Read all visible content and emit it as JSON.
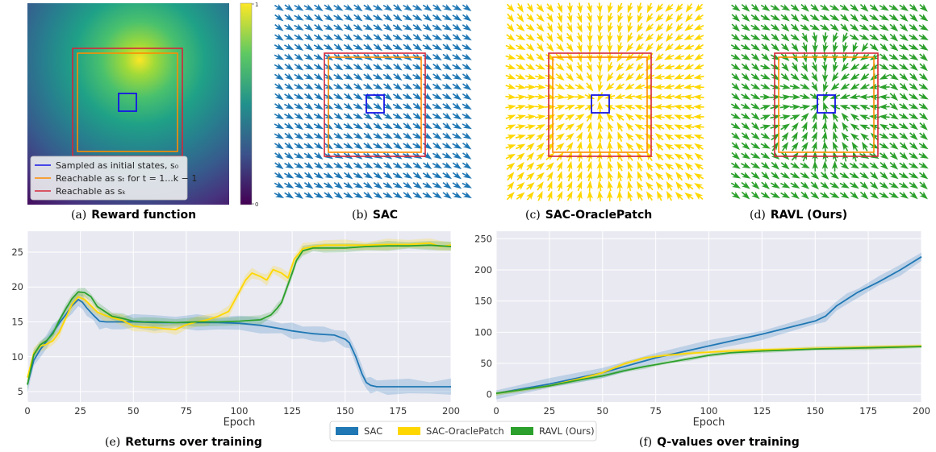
{
  "colors": {
    "sac": "#1f77b4",
    "oracle": "#ffd700",
    "ravl": "#2ca02c",
    "initial": "#1515e6",
    "reach_t": "#ff8c00",
    "reach_k": "#d62739",
    "panel_bg": "#e9e9f2"
  },
  "panels": {
    "a": {
      "label": "(a)",
      "title": "Reward function",
      "legend": [
        "Sampled as initial states, s₀",
        "Reachable as sₜ for t = 1...k − 1",
        "Reachable as sₖ"
      ],
      "colorbar_ticks": [
        "1",
        "0"
      ]
    },
    "b": {
      "label": "(b)",
      "title": "SAC"
    },
    "c": {
      "label": "(c)",
      "title": "SAC-OraclePatch"
    },
    "d": {
      "label": "(d)",
      "title": "RAVL (Ours)"
    }
  },
  "icons": {
    "arrow": "arrow-icon"
  },
  "chart_data": [
    {
      "type": "line",
      "panel": "(e)",
      "title": "Returns over training",
      "xlabel": "Epoch",
      "ylabel": "",
      "xlim": [
        0,
        200
      ],
      "ylim": [
        3.5,
        28
      ],
      "xticks": [
        0,
        25,
        50,
        75,
        100,
        125,
        150,
        175,
        200
      ],
      "yticks": [
        5,
        10,
        15,
        20,
        25
      ],
      "grid": true,
      "series": [
        {
          "name": "SAC",
          "color": "#1f77b4",
          "band": 1.0,
          "x": [
            0,
            3,
            6,
            9,
            12,
            15,
            18,
            21,
            24,
            26,
            28,
            31,
            34,
            37,
            40,
            45,
            50,
            60,
            70,
            80,
            90,
            100,
            110,
            120,
            125,
            130,
            135,
            140,
            145,
            150,
            152,
            155,
            158,
            160,
            162,
            165,
            170,
            180,
            190,
            200
          ],
          "y": [
            6,
            9.5,
            11,
            12.2,
            13.5,
            14.8,
            16,
            17.3,
            18.2,
            17.8,
            17,
            16,
            15.1,
            15,
            15,
            15,
            15,
            14.9,
            14.9,
            14.9,
            14.9,
            14.8,
            14.5,
            14,
            13.7,
            13.5,
            13.3,
            13.2,
            13.1,
            12.5,
            12,
            10,
            7.5,
            6.3,
            5.9,
            5.7,
            5.7,
            5.7,
            5.7,
            5.7
          ]
        },
        {
          "name": "SAC-OraclePatch",
          "color": "#ffd700",
          "band": 0.7,
          "x": [
            0,
            3,
            6,
            9,
            12,
            15,
            18,
            21,
            24,
            27,
            30,
            33,
            36,
            40,
            45,
            50,
            55,
            60,
            65,
            70,
            75,
            80,
            85,
            90,
            95,
            100,
            103,
            106,
            110,
            113,
            116,
            120,
            123,
            126,
            130,
            135,
            140,
            150,
            160,
            170,
            180,
            190,
            195,
            200
          ],
          "y": [
            7,
            10.5,
            11.5,
            11.8,
            12.3,
            13.5,
            15.5,
            17.5,
            18.6,
            18.2,
            17.3,
            16.4,
            16,
            15.6,
            15.2,
            14.4,
            14.2,
            14.2,
            14,
            13.9,
            14.6,
            15,
            15.3,
            15.8,
            16.5,
            19.3,
            21,
            22,
            21.5,
            21,
            22.5,
            22,
            21.3,
            24,
            25.5,
            25.8,
            26,
            26,
            26,
            26.1,
            26.1,
            26.3,
            25.8,
            26
          ]
        },
        {
          "name": "RAVL (Ours)",
          "color": "#2ca02c",
          "band": 0.6,
          "x": [
            0,
            3,
            6,
            9,
            12,
            15,
            18,
            21,
            24,
            27,
            30,
            33,
            36,
            40,
            45,
            50,
            55,
            60,
            70,
            80,
            90,
            100,
            110,
            115,
            118,
            120,
            122,
            125,
            127,
            130,
            135,
            140,
            150,
            160,
            170,
            180,
            190,
            200
          ],
          "y": [
            6,
            10.3,
            11.7,
            12.3,
            13.3,
            15.2,
            16.8,
            18.3,
            19.3,
            19.2,
            18.6,
            17.2,
            16.6,
            15.8,
            15.5,
            15.1,
            15,
            15,
            14.9,
            15,
            15,
            15.1,
            15.3,
            16,
            17,
            17.8,
            19.5,
            22,
            23.8,
            25.2,
            25.6,
            25.6,
            25.6,
            25.8,
            25.9,
            25.9,
            26,
            25.8
          ]
        }
      ]
    },
    {
      "type": "line",
      "panel": "(f)",
      "title": "Q-values over training",
      "xlabel": "Epoch",
      "ylabel": "",
      "xlim": [
        0,
        200
      ],
      "ylim": [
        -12,
        262
      ],
      "xticks": [
        0,
        25,
        50,
        75,
        100,
        125,
        150,
        175,
        200
      ],
      "yticks": [
        0,
        50,
        100,
        150,
        200,
        250
      ],
      "grid": true,
      "series": [
        {
          "name": "SAC",
          "color": "#1f77b4",
          "band": 8,
          "x": [
            0,
            25,
            50,
            75,
            100,
            125,
            150,
            155,
            160,
            165,
            170,
            180,
            190,
            200
          ],
          "y": [
            2,
            17,
            35,
            59,
            78,
            97,
            118,
            126,
            142,
            153,
            164,
            181,
            200,
            221
          ]
        },
        {
          "name": "SAC-OraclePatch",
          "color": "#ffd700",
          "band": 3,
          "x": [
            0,
            25,
            40,
            50,
            60,
            70,
            80,
            90,
            100,
            110,
            125,
            150,
            175,
            200
          ],
          "y": [
            2,
            14,
            26,
            35,
            49,
            59,
            63,
            66,
            68,
            70,
            72,
            74,
            76,
            78
          ]
        },
        {
          "name": "RAVL (Ours)",
          "color": "#2ca02c",
          "band": 3,
          "x": [
            0,
            25,
            40,
            50,
            60,
            70,
            80,
            90,
            100,
            110,
            125,
            150,
            175,
            200
          ],
          "y": [
            2,
            14,
            24,
            30,
            38,
            45,
            51,
            57,
            63,
            67,
            70,
            73,
            75,
            77
          ]
        }
      ]
    }
  ],
  "legend_bottom": [
    "SAC",
    "SAC-OraclePatch",
    "RAVL (Ours)"
  ]
}
